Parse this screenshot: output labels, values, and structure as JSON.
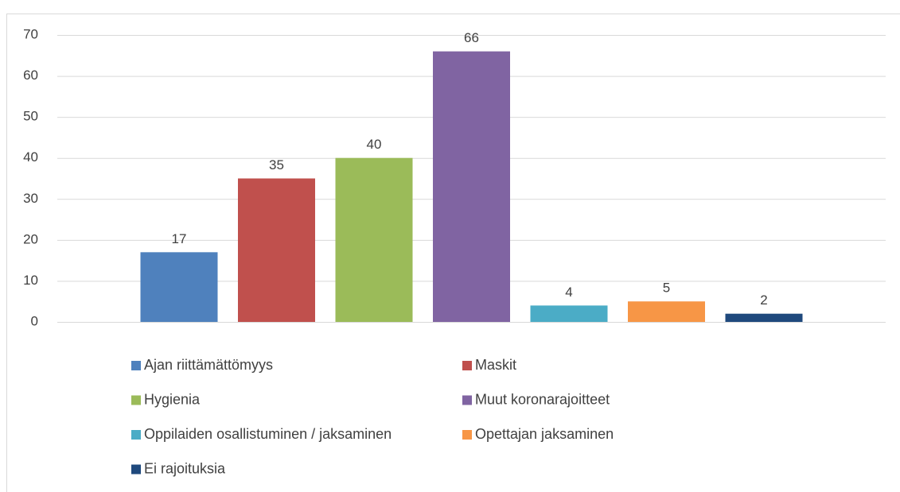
{
  "chart_data": {
    "type": "bar",
    "categories": [
      null
    ],
    "series": [
      {
        "name": "Ajan riittämättömyys",
        "color": "#4f81bd",
        "values": [
          17
        ]
      },
      {
        "name": "Maskit",
        "color": "#c0504d",
        "values": [
          35
        ]
      },
      {
        "name": "Hygienia",
        "color": "#9bbb59",
        "values": [
          40
        ]
      },
      {
        "name": "Muut koronarajoitteet",
        "color": "#8064a2",
        "values": [
          66
        ]
      },
      {
        "name": "Oppilaiden osallistuminen / jaksaminen",
        "color": "#4bacc6",
        "values": [
          4
        ]
      },
      {
        "name": "Opettajan jaksaminen",
        "color": "#f79646",
        "values": [
          5
        ]
      },
      {
        "name": "Ei rajoituksia",
        "color": "#1f497d",
        "values": [
          2
        ]
      }
    ],
    "ylim": [
      0,
      70
    ],
    "yticks": [
      0,
      10,
      20,
      30,
      40,
      50,
      60,
      70
    ],
    "grid": true,
    "legend": "bottom"
  }
}
